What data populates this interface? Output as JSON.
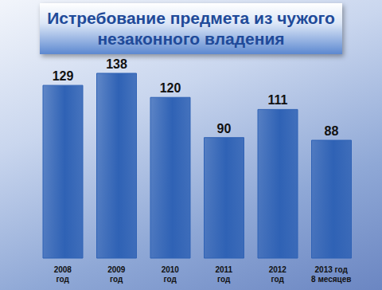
{
  "chart_data": {
    "type": "bar",
    "title": "Истребование предмета из чужого\nнезаконного владения",
    "categories": [
      "2008\nгод",
      "2009\nгод",
      "2010\nгод",
      "2011\nгод",
      "2012\nгод",
      "2013 год\n8 месяцев"
    ],
    "values": [
      129,
      138,
      120,
      90,
      111,
      88
    ],
    "color": "#2f62b5",
    "data_labels": true,
    "tick_labels": "x"
  }
}
